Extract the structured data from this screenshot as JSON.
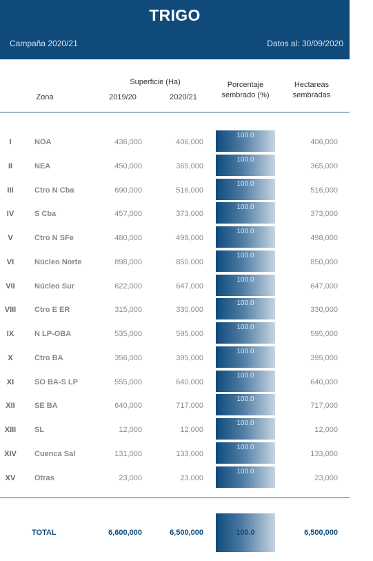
{
  "header": {
    "title": "TRIGO",
    "campaign": "Campaña 2020/21",
    "date": "Datos al: 30/09/2020"
  },
  "columns": {
    "superficie": "Superficie (Ha)",
    "zona": "Zona",
    "year1": "2019/20",
    "year2": "2020/21",
    "porcentaje_line1": "Porcentaje",
    "porcentaje_line2": "sembrado (%)",
    "hectareas_line1": "Hectareas",
    "hectareas_line2": "sembradas"
  },
  "rows": [
    {
      "id": "I",
      "zone": "NOA",
      "v1": "436,000",
      "v2": "406,000",
      "pct": "100.0",
      "ha": "406,000"
    },
    {
      "id": "II",
      "zone": "NEA",
      "v1": "450,000",
      "v2": "365,000",
      "pct": "100.0",
      "ha": "365,000"
    },
    {
      "id": "III",
      "zone": "Ctro N Cba",
      "v1": "690,000",
      "v2": "516,000",
      "pct": "100.0",
      "ha": "516,000"
    },
    {
      "id": "IV",
      "zone": "S Cba",
      "v1": "457,000",
      "v2": "373,000",
      "pct": "100.0",
      "ha": "373,000"
    },
    {
      "id": "V",
      "zone": "Ctro N SFe",
      "v1": "480,000",
      "v2": "498,000",
      "pct": "100.0",
      "ha": "498,000"
    },
    {
      "id": "VI",
      "zone": "Núcleo Norte",
      "v1": "898,000",
      "v2": "850,000",
      "pct": "100.0",
      "ha": "850,000"
    },
    {
      "id": "VII",
      "zone": "Núcleo Sur",
      "v1": "622,000",
      "v2": "647,000",
      "pct": "100.0",
      "ha": "647,000"
    },
    {
      "id": "VIII",
      "zone": "Ctro E ER",
      "v1": "315,000",
      "v2": "330,000",
      "pct": "100.0",
      "ha": "330,000"
    },
    {
      "id": "IX",
      "zone": "N LP-OBA",
      "v1": "535,000",
      "v2": "595,000",
      "pct": "100.0",
      "ha": "595,000"
    },
    {
      "id": "X",
      "zone": "Ctro BA",
      "v1": "356,000",
      "v2": "395,000",
      "pct": "100.0",
      "ha": "395,000"
    },
    {
      "id": "XI",
      "zone": "SO BA-S LP",
      "v1": "555,000",
      "v2": "640,000",
      "pct": "100.0",
      "ha": "640,000"
    },
    {
      "id": "XII",
      "zone": "SE BA",
      "v1": "640,000",
      "v2": "717,000",
      "pct": "100.0",
      "ha": "717,000"
    },
    {
      "id": "XIII",
      "zone": "SL",
      "v1": "12,000",
      "v2": "12,000",
      "pct": "100.0",
      "ha": "12,000"
    },
    {
      "id": "XIV",
      "zone": "Cuenca Sal",
      "v1": "131,000",
      "v2": "133,000",
      "pct": "100.0",
      "ha": "133,000"
    },
    {
      "id": "XV",
      "zone": "Otras",
      "v1": "23,000",
      "v2": "23,000",
      "pct": "100.0",
      "ha": "23,000"
    }
  ],
  "total": {
    "label": "TOTAL",
    "v1": "6,600,000",
    "v2": "6,500,000",
    "pct": "100.0",
    "ha": "6,500,000"
  },
  "colors": {
    "header_bg": "#0f4a7b",
    "bar_dark": "#0f4a7b",
    "bar_light": "#c7d5e2"
  }
}
